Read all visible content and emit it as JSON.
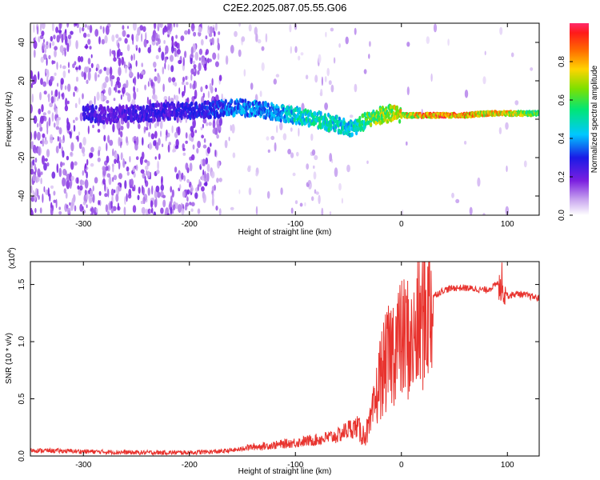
{
  "title": "C2E2.2025.087.05.55.G06",
  "chart_data": [
    {
      "type": "heatmap",
      "xlabel": "Height of straight line (km)",
      "ylabel": "Frequency (Hz)",
      "xlim": [
        -350,
        130
      ],
      "ylim": [
        -50,
        50
      ],
      "xticks": [
        -300,
        -200,
        -100,
        0,
        100
      ],
      "yticks": [
        -40,
        -20,
        0,
        20,
        40
      ],
      "colorbar": {
        "label": "Normalized spectral amplitude",
        "ticks": [
          "0.0",
          "0.2",
          "0.4",
          "0.6",
          "0.8"
        ],
        "range": [
          0,
          1
        ]
      },
      "ridge": {
        "x": [
          -290,
          -280,
          -250,
          -220,
          -180,
          -150,
          -120,
          -100,
          -80,
          -60,
          -50,
          -40,
          -30,
          -20,
          -10,
          0,
          20,
          40,
          60,
          80,
          100,
          120,
          130
        ],
        "freq": [
          3,
          2,
          3,
          4,
          5,
          6,
          4,
          2,
          0,
          -3,
          -5,
          -3,
          0,
          2,
          3,
          2,
          2,
          2,
          2,
          3,
          3,
          3,
          3
        ],
        "amplitude": [
          0.3,
          0.25,
          0.3,
          0.3,
          0.35,
          0.45,
          0.45,
          0.55,
          0.6,
          0.55,
          0.55,
          0.6,
          0.7,
          0.8,
          0.8,
          0.85,
          0.95,
          1.0,
          0.95,
          0.9,
          0.9,
          0.75,
          0.7
        ]
      }
    },
    {
      "type": "line",
      "xlabel": "Height of straight line (km)",
      "ylabel": "SNR (10 * v/v)",
      "exponent_label": "(x10",
      "exponent_power": "4",
      "xlim": [
        -350,
        130
      ],
      "ylim": [
        0,
        1.7
      ],
      "xticks": [
        -300,
        -200,
        -100,
        0,
        100
      ],
      "yticks": [
        "0.0",
        "0.5",
        "1.0",
        "1.5"
      ],
      "series": [
        {
          "color": "#e8332e",
          "x": [
            -350,
            -300,
            -250,
            -200,
            -170,
            -150,
            -120,
            -100,
            -80,
            -60,
            -50,
            -40,
            -35,
            -30,
            -25,
            -20,
            -15,
            -10,
            -5,
            0,
            5,
            10,
            15,
            20,
            25,
            30,
            40,
            50,
            60,
            70,
            80,
            90,
            95,
            100,
            110,
            120,
            130
          ],
          "y": [
            0.05,
            0.04,
            0.03,
            0.03,
            0.04,
            0.06,
            0.08,
            0.1,
            0.12,
            0.15,
            0.2,
            0.22,
            0.18,
            0.25,
            0.45,
            0.7,
            0.8,
            0.9,
            1.0,
            1.0,
            1.05,
            0.95,
            1.1,
            1.2,
            1.3,
            1.4,
            1.45,
            1.47,
            1.47,
            1.46,
            1.45,
            1.5,
            1.55,
            1.4,
            1.42,
            1.4,
            1.38
          ]
        }
      ]
    }
  ]
}
